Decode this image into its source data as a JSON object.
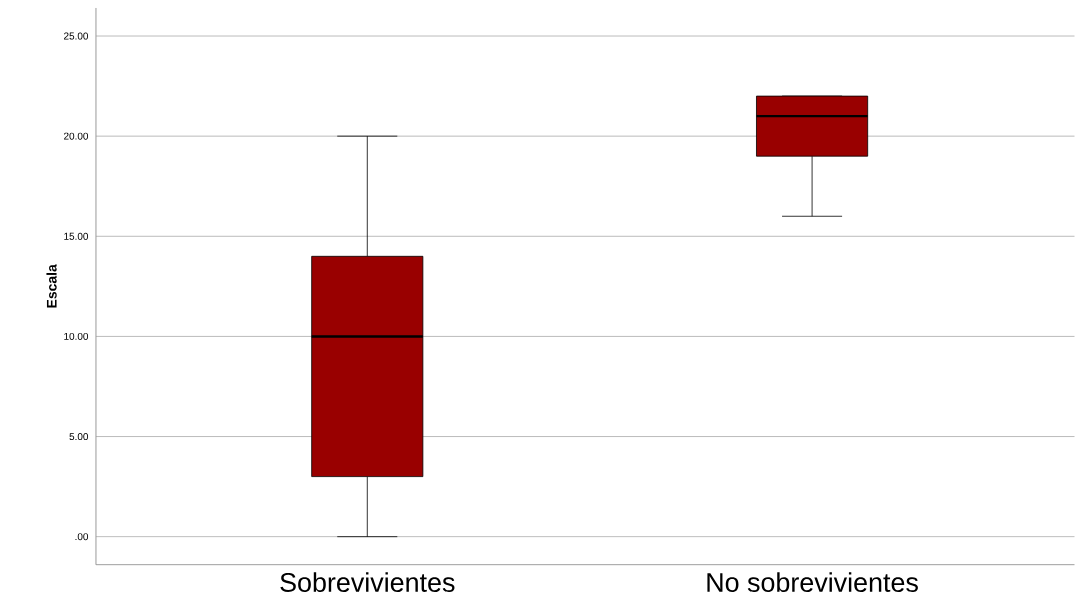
{
  "chart_data": {
    "type": "box",
    "ylabel": "Escala",
    "categories": [
      "Sobrevivientes",
      "No sobrevivientes"
    ],
    "boxes": [
      {
        "low": 0,
        "q1": 3,
        "median": 10,
        "q3": 14,
        "high": 20
      },
      {
        "low": 16,
        "q1": 19,
        "median": 21,
        "q3": 22,
        "high": 22
      }
    ],
    "color": "#990000",
    "ylim": [
      -1.4,
      26.4
    ],
    "yticks": [
      {
        "value": 0,
        "label": ".00"
      },
      {
        "value": 5,
        "label": "5.00"
      },
      {
        "value": 10,
        "label": "10.00"
      },
      {
        "value": 15,
        "label": "15.00"
      },
      {
        "value": 20,
        "label": "20.00"
      },
      {
        "value": 25,
        "label": "25.00"
      }
    ],
    "grid": "y"
  }
}
